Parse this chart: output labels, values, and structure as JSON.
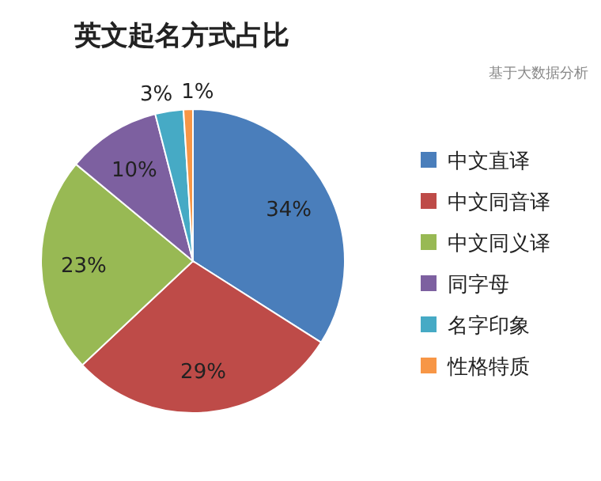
{
  "chart_data": {
    "type": "pie",
    "title": "英文起名方式占比",
    "annotations": [
      "基于大数据分析"
    ],
    "categories": [
      "中文直译",
      "中文同音译",
      "中文同义译",
      "同字母",
      "名字印象",
      "性格特质"
    ],
    "values": [
      34,
      29,
      23,
      10,
      3,
      1
    ],
    "value_labels": [
      "34%",
      "29%",
      "23%",
      "10%",
      "3%",
      "1%"
    ],
    "colors": [
      "#4a7ebb",
      "#be4b48",
      "#98b954",
      "#7d60a0",
      "#46aac5",
      "#f79646"
    ],
    "legend": "right"
  }
}
